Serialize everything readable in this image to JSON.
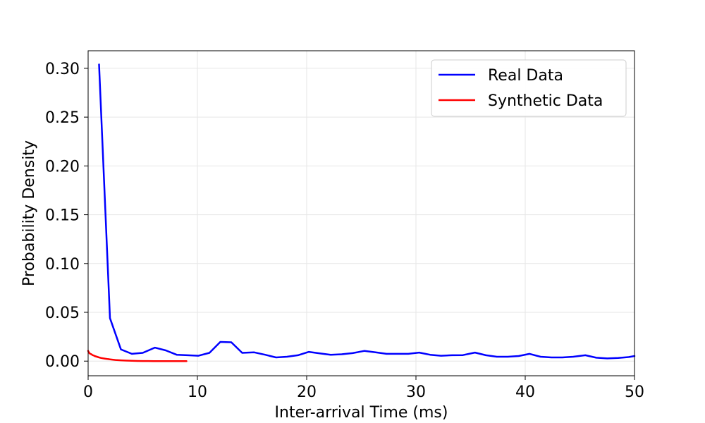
{
  "chart_data": {
    "type": "line",
    "title": "",
    "xlabel": "Inter-arrival Time (ms)",
    "ylabel": "Probability Density",
    "xlim": [
      0,
      50
    ],
    "ylim": [
      -0.015,
      0.318
    ],
    "xticks": [
      0,
      10,
      20,
      30,
      40,
      50
    ],
    "xtick_labels": [
      "0",
      "10",
      "20",
      "30",
      "40",
      "50"
    ],
    "yticks": [
      0.0,
      0.05,
      0.1,
      0.15,
      0.2,
      0.25,
      0.3
    ],
    "ytick_labels": [
      "0.00",
      "0.05",
      "0.10",
      "0.15",
      "0.20",
      "0.25",
      "0.30"
    ],
    "grid": true,
    "legend_position": "top-right",
    "series": [
      {
        "name": "Real Data",
        "color": "#0000ff",
        "x": [
          1.0,
          2.0,
          3.0,
          4.0,
          5.0,
          6.1,
          7.1,
          8.1,
          9.1,
          10.1,
          11.1,
          12.1,
          13.1,
          14.1,
          15.2,
          16.2,
          17.2,
          18.2,
          19.2,
          20.2,
          21.2,
          22.2,
          23.2,
          24.2,
          25.3,
          26.3,
          27.3,
          28.3,
          29.3,
          30.3,
          31.3,
          32.3,
          33.3,
          34.3,
          35.4,
          36.4,
          37.4,
          38.4,
          39.4,
          40.4,
          41.4,
          42.4,
          43.4,
          44.4,
          45.5,
          46.5,
          47.5,
          48.5,
          49.5,
          50.0
        ],
        "values": [
          0.304,
          0.044,
          0.012,
          0.0075,
          0.0085,
          0.0138,
          0.011,
          0.0065,
          0.006,
          0.0055,
          0.0085,
          0.0197,
          0.0193,
          0.0085,
          0.009,
          0.0065,
          0.0038,
          0.0045,
          0.006,
          0.0095,
          0.008,
          0.0065,
          0.007,
          0.0082,
          0.0105,
          0.009,
          0.0075,
          0.0075,
          0.0075,
          0.0088,
          0.0065,
          0.0055,
          0.006,
          0.0062,
          0.0088,
          0.006,
          0.0045,
          0.0045,
          0.0052,
          0.0075,
          0.0045,
          0.0038,
          0.0038,
          0.0045,
          0.006,
          0.0035,
          0.0028,
          0.0032,
          0.0042,
          0.0052
        ]
      },
      {
        "name": "Synthetic Data",
        "color": "#ff0000",
        "x": [
          0.0,
          0.1,
          0.2,
          0.3,
          0.4,
          0.5,
          0.6,
          0.8,
          1.0,
          1.2,
          1.5,
          1.8,
          2.0,
          2.5,
          3.0,
          3.5,
          4.0,
          4.5,
          5.0,
          5.5,
          6.0,
          6.5,
          7.0,
          7.5,
          8.0,
          8.5,
          9.0
        ],
        "values": [
          0.0105,
          0.0085,
          0.0075,
          0.007,
          0.0062,
          0.0058,
          0.0052,
          0.0045,
          0.0038,
          0.0032,
          0.0026,
          0.0021,
          0.0018,
          0.0012,
          0.0008,
          0.0005,
          0.0003,
          0.0002,
          0.0001,
          0.0001,
          0.0,
          0.0,
          0.0,
          0.0,
          0.0,
          0.0,
          0.0
        ]
      }
    ]
  }
}
